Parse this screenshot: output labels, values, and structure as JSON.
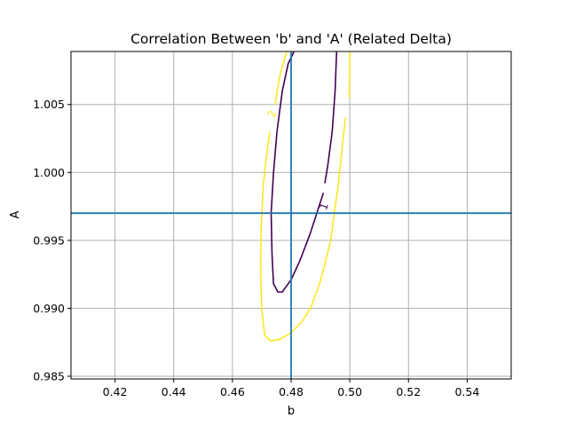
{
  "chart_data": {
    "type": "line",
    "title": "Correlation Between 'b' and 'A' (Related Delta)",
    "xlabel": "b",
    "ylabel": "A",
    "xlim": [
      0.405,
      0.555
    ],
    "ylim": [
      0.9848,
      1.0089
    ],
    "xticks": [
      0.42,
      0.44,
      0.46,
      0.48,
      0.5,
      0.52,
      0.54
    ],
    "xtick_labels": [
      "0.42",
      "0.44",
      "0.46",
      "0.48",
      "0.50",
      "0.52",
      "0.54"
    ],
    "yticks": [
      0.985,
      0.99,
      0.995,
      1.0,
      1.005
    ],
    "ytick_labels": [
      "0.985",
      "0.990",
      "0.995",
      "1.000",
      "1.005"
    ],
    "grid": true,
    "crosshair": {
      "x": 0.48,
      "y": 0.997,
      "color": "#1f77b4"
    },
    "contours": [
      {
        "level": "1",
        "color": "#440154",
        "points": [
          [
            0.491,
            0.9985
          ],
          [
            0.4865,
            0.9955
          ],
          [
            0.483,
            0.9935
          ],
          [
            0.48,
            0.9921
          ],
          [
            0.477,
            0.9912
          ],
          [
            0.4755,
            0.9912
          ],
          [
            0.474,
            0.9918
          ],
          [
            0.4735,
            0.994
          ],
          [
            0.4732,
            0.997
          ],
          [
            0.474,
            1.0
          ],
          [
            0.4752,
            1.003
          ],
          [
            0.477,
            1.006
          ],
          [
            0.479,
            1.008
          ],
          [
            0.481,
            1.0089
          ]
        ],
        "points_b": [
          [
            0.4955,
            1.0089
          ],
          [
            0.495,
            1.006
          ],
          [
            0.494,
            1.003
          ],
          [
            0.4925,
            1.0005
          ],
          [
            0.4915,
            0.9992
          ]
        ],
        "label_at": [
          0.4912,
          0.9975
        ]
      },
      {
        "level": "2",
        "color": "#fde725",
        "points": [
          [
            0.4988,
            1.004
          ],
          [
            0.4985,
            1.004
          ],
          [
            0.496,
            0.999
          ],
          [
            0.4935,
            0.995
          ],
          [
            0.49,
            0.992
          ],
          [
            0.487,
            0.9902
          ],
          [
            0.484,
            0.9891
          ],
          [
            0.48,
            0.9882
          ],
          [
            0.476,
            0.9877
          ],
          [
            0.473,
            0.9876
          ],
          [
            0.471,
            0.988
          ],
          [
            0.47,
            0.99
          ],
          [
            0.4696,
            0.993
          ],
          [
            0.4698,
            0.996
          ],
          [
            0.4705,
            0.999
          ],
          [
            0.4715,
            1.001
          ],
          [
            0.4727,
            1.003
          ]
        ],
        "points_b": [
          [
            0.4746,
            1.005
          ],
          [
            0.476,
            1.007
          ],
          [
            0.4785,
            1.0089
          ]
        ],
        "points_c": [
          [
            0.5,
            1.0089
          ],
          [
            0.5,
            1.007
          ],
          [
            0.4998,
            1.0055
          ]
        ],
        "label_at": [
          0.4735,
          1.0043
        ]
      }
    ]
  }
}
